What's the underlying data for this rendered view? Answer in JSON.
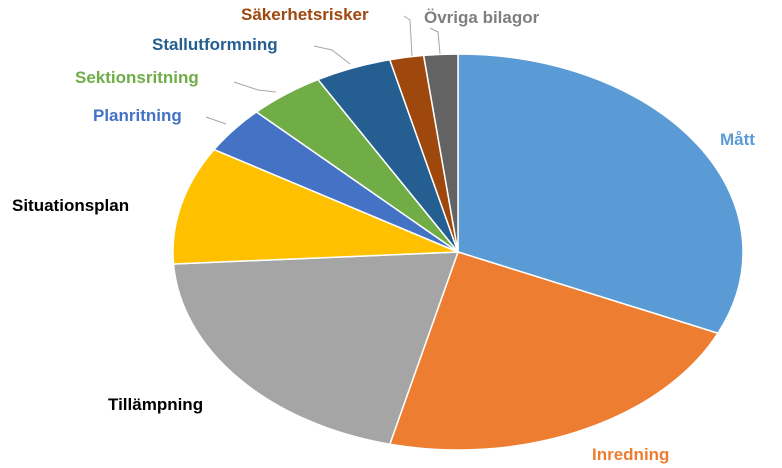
{
  "chart_data": {
    "type": "pie",
    "title": "",
    "slices": [
      {
        "label": "Mått",
        "value": 33,
        "color": "#5b9bd5",
        "label_color": "#5b9bd5"
      },
      {
        "label": "Inredning",
        "value": 23,
        "color": "#ed7d31",
        "label_color": "#ed7d31"
      },
      {
        "label": "Tillämpning",
        "value": 21,
        "color": "#a5a5a5",
        "label_color": "#000000"
      },
      {
        "label": "Situationsplan",
        "value": 10,
        "color": "#ffc000",
        "label_color": "#000000"
      },
      {
        "label": "Planritning",
        "value": 4,
        "color": "#4472c4",
        "label_color": "#4472c4"
      },
      {
        "label": "Sektionsritning",
        "value": 4.5,
        "color": "#70ad47",
        "label_color": "#70ad47"
      },
      {
        "label": "Stallutformning",
        "value": 4.5,
        "color": "#255e91",
        "label_color": "#255e91"
      },
      {
        "label": "Säkerhetsrisker",
        "value": 2,
        "color": "#9e480e",
        "label_color": "#9e480e"
      },
      {
        "label": "Övriga bilagor",
        "value": 2,
        "color": "#636363",
        "label_color": "#7f7f7f"
      }
    ],
    "legend": "none",
    "data_labels": "category names"
  }
}
